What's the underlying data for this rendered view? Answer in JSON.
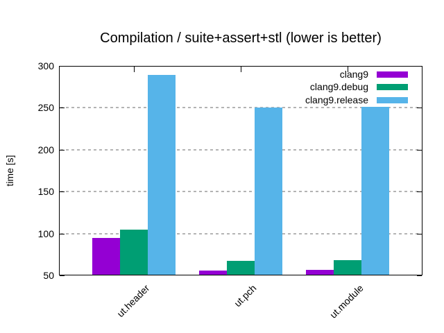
{
  "chart_data": {
    "type": "bar",
    "title": "Compilation / suite+assert+stl (lower is better)",
    "ylabel": "time [s]",
    "categories": [
      "ut.header",
      "ut.pch",
      "ut.module"
    ],
    "series": [
      {
        "name": "clang9",
        "color": "#9400d3",
        "values": [
          95,
          56,
          57
        ]
      },
      {
        "name": "clang9.debug",
        "color": "#009e73",
        "values": [
          105,
          67,
          68
        ]
      },
      {
        "name": "clang9.release",
        "color": "#56b4e9",
        "values": [
          289,
          250,
          251
        ]
      }
    ],
    "ylim": [
      50,
      300
    ],
    "yticks": [
      50,
      100,
      150,
      200,
      250,
      300
    ],
    "grid": true,
    "grid_values": [
      100,
      150,
      200,
      250
    ],
    "legend_position": "top-right",
    "legend": [
      "clang9",
      "clang9.debug",
      "clang9.release"
    ],
    "colors": {
      "background": "#ffffff",
      "axis": "#000000",
      "grid": "#b4b4b4",
      "text": "#000000"
    }
  }
}
